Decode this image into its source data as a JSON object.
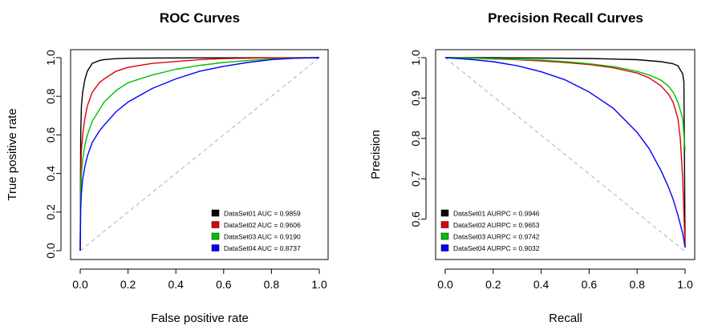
{
  "chart_data": [
    {
      "type": "line",
      "title": "ROC Curves",
      "xlabel": "False positive rate",
      "ylabel": "True positive rate",
      "xlim": [
        0,
        1
      ],
      "ylim": [
        0,
        1
      ],
      "xticks": [
        "0.0",
        "0.2",
        "0.4",
        "0.6",
        "0.8",
        "1.0"
      ],
      "yticks": [
        "0.0",
        "0.2",
        "0.4",
        "0.6",
        "0.8",
        "1.0"
      ],
      "legend_position": "bottom-right",
      "diagonal": {
        "style": "dashed",
        "color": "#b0b0b0",
        "x": [
          0,
          1
        ],
        "y": [
          0,
          1
        ]
      },
      "series": [
        {
          "name": "DataSet01",
          "legend_label": "DataSet01 AUC = 0.9859",
          "color": "#000000",
          "x": [
            0,
            0.002,
            0.005,
            0.01,
            0.02,
            0.03,
            0.05,
            0.08,
            0.1,
            0.15,
            0.2,
            0.3,
            0.5,
            1.0
          ],
          "y": [
            0,
            0.6,
            0.75,
            0.82,
            0.89,
            0.93,
            0.97,
            0.985,
            0.99,
            0.995,
            0.997,
            0.998,
            0.999,
            1.0
          ]
        },
        {
          "name": "DataSet02",
          "legend_label": "DataSet02 AUC = 0.9606",
          "color": "#e0000a",
          "x": [
            0,
            0.002,
            0.005,
            0.01,
            0.02,
            0.03,
            0.05,
            0.08,
            0.1,
            0.15,
            0.2,
            0.3,
            0.4,
            0.5,
            0.6,
            0.8,
            1.0
          ],
          "y": [
            0,
            0.4,
            0.52,
            0.6,
            0.69,
            0.75,
            0.82,
            0.87,
            0.89,
            0.93,
            0.95,
            0.97,
            0.98,
            0.99,
            0.995,
            0.999,
            1.0
          ]
        },
        {
          "name": "DataSet03",
          "legend_label": "DataSet03 AUC = 0.9190",
          "color": "#00c000",
          "x": [
            0,
            0.002,
            0.005,
            0.01,
            0.02,
            0.03,
            0.05,
            0.08,
            0.1,
            0.15,
            0.2,
            0.3,
            0.4,
            0.5,
            0.6,
            0.7,
            0.8,
            0.9,
            1.0
          ],
          "y": [
            0,
            0.3,
            0.4,
            0.47,
            0.55,
            0.6,
            0.67,
            0.73,
            0.77,
            0.83,
            0.87,
            0.91,
            0.94,
            0.96,
            0.975,
            0.985,
            0.993,
            0.998,
            1.0
          ]
        },
        {
          "name": "DataSet04",
          "legend_label": "DataSet04 AUC = 0.8737",
          "color": "#0000ff",
          "x": [
            0,
            0.002,
            0.005,
            0.01,
            0.02,
            0.03,
            0.05,
            0.08,
            0.1,
            0.15,
            0.2,
            0.3,
            0.4,
            0.5,
            0.6,
            0.7,
            0.8,
            0.9,
            1.0
          ],
          "y": [
            0,
            0.22,
            0.3,
            0.37,
            0.44,
            0.49,
            0.56,
            0.62,
            0.65,
            0.72,
            0.77,
            0.84,
            0.89,
            0.93,
            0.955,
            0.975,
            0.99,
            0.997,
            1.0
          ]
        }
      ]
    },
    {
      "type": "line",
      "title": "Precision Recall Curves",
      "xlabel": "Recall",
      "ylabel": "Precision",
      "xlim": [
        0,
        1
      ],
      "ylim": [
        0.52,
        1.0
      ],
      "xticks": [
        "0.0",
        "0.2",
        "0.4",
        "0.6",
        "0.8",
        "1.0"
      ],
      "yticks": [
        "0.6",
        "0.7",
        "0.8",
        "0.9",
        "1.0"
      ],
      "legend_position": "bottom-left",
      "diagonal": {
        "style": "dashed",
        "color": "#b0b0b0",
        "x": [
          0,
          1
        ],
        "y": [
          1.0,
          0.52
        ]
      },
      "series": [
        {
          "name": "DataSet01",
          "legend_label": "DataSet01 AURPC = 0.9946",
          "color": "#000000",
          "x": [
            0,
            0.2,
            0.4,
            0.6,
            0.8,
            0.9,
            0.95,
            0.97,
            0.98,
            0.99,
            0.995,
            1.0
          ],
          "y": [
            1.0,
            1.0,
            0.999,
            0.998,
            0.995,
            0.99,
            0.985,
            0.98,
            0.97,
            0.96,
            0.94,
            0.53
          ]
        },
        {
          "name": "DataSet02",
          "legend_label": "DataSet02 AURPC = 0.9653",
          "color": "#e0000a",
          "x": [
            0,
            0.1,
            0.2,
            0.3,
            0.4,
            0.5,
            0.6,
            0.7,
            0.8,
            0.85,
            0.9,
            0.93,
            0.95,
            0.97,
            0.98,
            0.99,
            1.0
          ],
          "y": [
            1.0,
            0.999,
            0.997,
            0.995,
            0.992,
            0.988,
            0.983,
            0.975,
            0.962,
            0.95,
            0.93,
            0.91,
            0.89,
            0.85,
            0.8,
            0.7,
            0.53
          ]
        },
        {
          "name": "DataSet03",
          "legend_label": "DataSet03 AURPC = 0.9742",
          "color": "#00c000",
          "x": [
            0,
            0.1,
            0.2,
            0.3,
            0.4,
            0.5,
            0.6,
            0.7,
            0.8,
            0.85,
            0.9,
            0.93,
            0.95,
            0.97,
            0.99,
            1.0
          ],
          "y": [
            1.0,
            0.999,
            0.998,
            0.996,
            0.994,
            0.99,
            0.985,
            0.978,
            0.966,
            0.957,
            0.944,
            0.93,
            0.915,
            0.89,
            0.85,
            0.77
          ]
        },
        {
          "name": "DataSet04",
          "legend_label": "DataSet04 AURPC = 0.9032",
          "color": "#0000ff",
          "x": [
            0,
            0.1,
            0.2,
            0.3,
            0.4,
            0.5,
            0.6,
            0.7,
            0.8,
            0.85,
            0.9,
            0.93,
            0.95,
            0.97,
            0.99,
            1.0
          ],
          "y": [
            1.0,
            0.996,
            0.99,
            0.98,
            0.965,
            0.945,
            0.915,
            0.875,
            0.815,
            0.775,
            0.72,
            0.68,
            0.65,
            0.61,
            0.565,
            0.53
          ]
        }
      ]
    }
  ]
}
